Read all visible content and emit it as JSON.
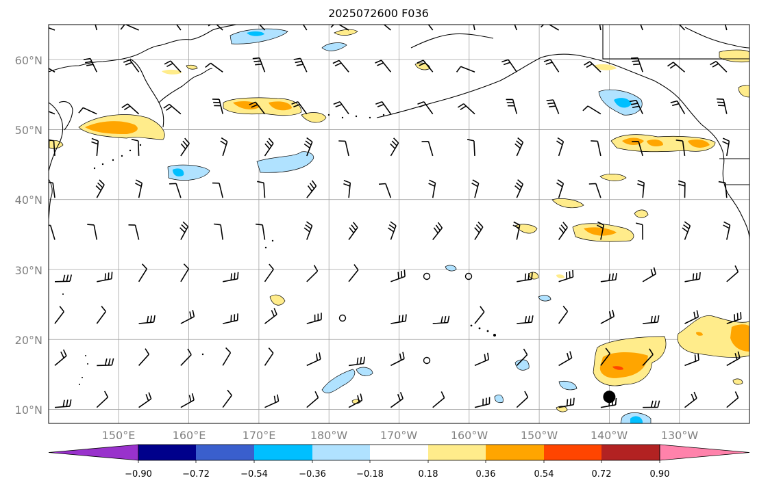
{
  "title": "2025072600 F036",
  "map": {
    "lat_range": [
      8,
      65
    ],
    "lon_range": [
      140,
      240
    ],
    "lat_labels": [
      "60°N",
      "50°N",
      "40°N",
      "30°N",
      "20°N",
      "10°N"
    ],
    "lon_labels": [
      "150°E",
      "160°E",
      "170°E",
      "180°W",
      "170°W",
      "160°W",
      "150°W",
      "140°W",
      "130°W"
    ],
    "gridlines": true,
    "marker": {
      "lon": 220.0,
      "lat": 11.8,
      "color": "#000000"
    }
  },
  "colorbar": {
    "ticks": [
      "−0.90",
      "−0.72",
      "−0.54",
      "−0.36",
      "−0.18",
      "0.18",
      "0.36",
      "0.54",
      "0.72",
      "0.90"
    ],
    "colors": [
      "#9932CC",
      "#00008B",
      "#3A5FCD",
      "#00BFFF",
      "#B0E2FF",
      "#FFFFFF",
      "#FFEC8B",
      "#FFA500",
      "#FF4500",
      "#B22222",
      "#FF82AB"
    ],
    "extend": "both"
  }
}
